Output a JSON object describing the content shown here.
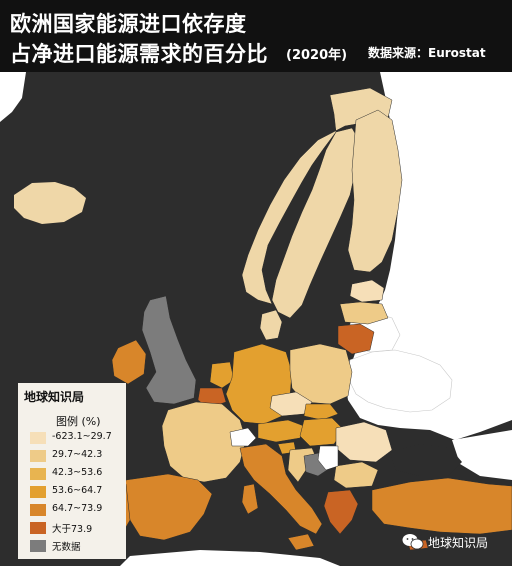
{
  "title": {
    "line1": "欧洲国家能源进口依存度",
    "line2": "占净进口能源需求的百分比",
    "year": "(2020年)",
    "source": "数据来源：Eurostat"
  },
  "legend": {
    "brand": "地球知识局",
    "title": "图例 (%)",
    "items": [
      {
        "label": "-623.1~29.7",
        "color": "#f6dfb8"
      },
      {
        "label": "29.7~42.3",
        "color": "#eecb88"
      },
      {
        "label": "42.3~53.6",
        "color": "#e8b450"
      },
      {
        "label": "53.6~64.7",
        "color": "#e3a02f"
      },
      {
        "label": "64.7~73.9",
        "color": "#d8862a"
      },
      {
        "label": "大于73.9",
        "color": "#c96424"
      },
      {
        "label": "无数据",
        "color": "#7c7c7c"
      }
    ]
  },
  "watermark": "地球知识局",
  "footer": {
    "brand": "地球知识局"
  },
  "colors": {
    "sea": "#2d2d2d",
    "non_eu_land": "#ffffff",
    "title_band": "#111111"
  }
}
